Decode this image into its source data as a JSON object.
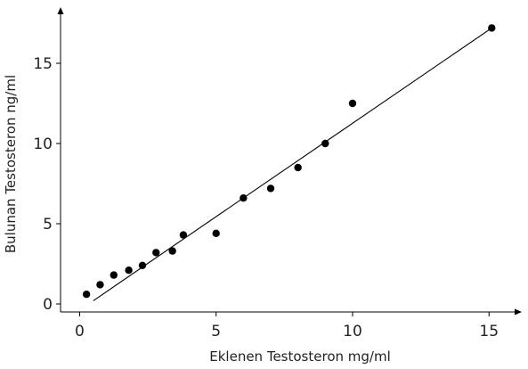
{
  "chart_data": {
    "type": "scatter",
    "title": "",
    "xlabel": "Eklenen Testosteron mg/ml",
    "ylabel": "Bulunan Testosteron ng/ml",
    "xlim": [
      -0.7,
      16.2
    ],
    "ylim": [
      -0.5,
      18.5
    ],
    "xticks": [
      0,
      5,
      10,
      15
    ],
    "yticks": [
      0,
      5,
      10,
      15
    ],
    "tick_labels_x": [
      "0",
      "5",
      "10",
      "15"
    ],
    "tick_labels_y": [
      "0",
      "5",
      "10",
      "15"
    ],
    "grid": false,
    "legend": "none",
    "series": [
      {
        "points": [
          {
            "x": 0.25,
            "y": 0.6
          },
          {
            "x": 0.75,
            "y": 1.2
          },
          {
            "x": 1.25,
            "y": 1.8
          },
          {
            "x": 1.8,
            "y": 2.1
          },
          {
            "x": 2.3,
            "y": 2.4
          },
          {
            "x": 2.8,
            "y": 3.2
          },
          {
            "x": 3.4,
            "y": 3.3
          },
          {
            "x": 3.8,
            "y": 4.3
          },
          {
            "x": 5.0,
            "y": 4.4
          },
          {
            "x": 6.0,
            "y": 6.6
          },
          {
            "x": 7.0,
            "y": 7.2
          },
          {
            "x": 8.0,
            "y": 8.5
          },
          {
            "x": 9.0,
            "y": 10.0
          },
          {
            "x": 10.0,
            "y": 12.5
          },
          {
            "x": 15.1,
            "y": 17.2
          }
        ],
        "marker_color": "#000000"
      }
    ],
    "fit_line": {
      "x_start": 0.5,
      "y_start": 0.2,
      "x_end": 15.1,
      "y_end": 17.2,
      "color": "#000000"
    }
  }
}
